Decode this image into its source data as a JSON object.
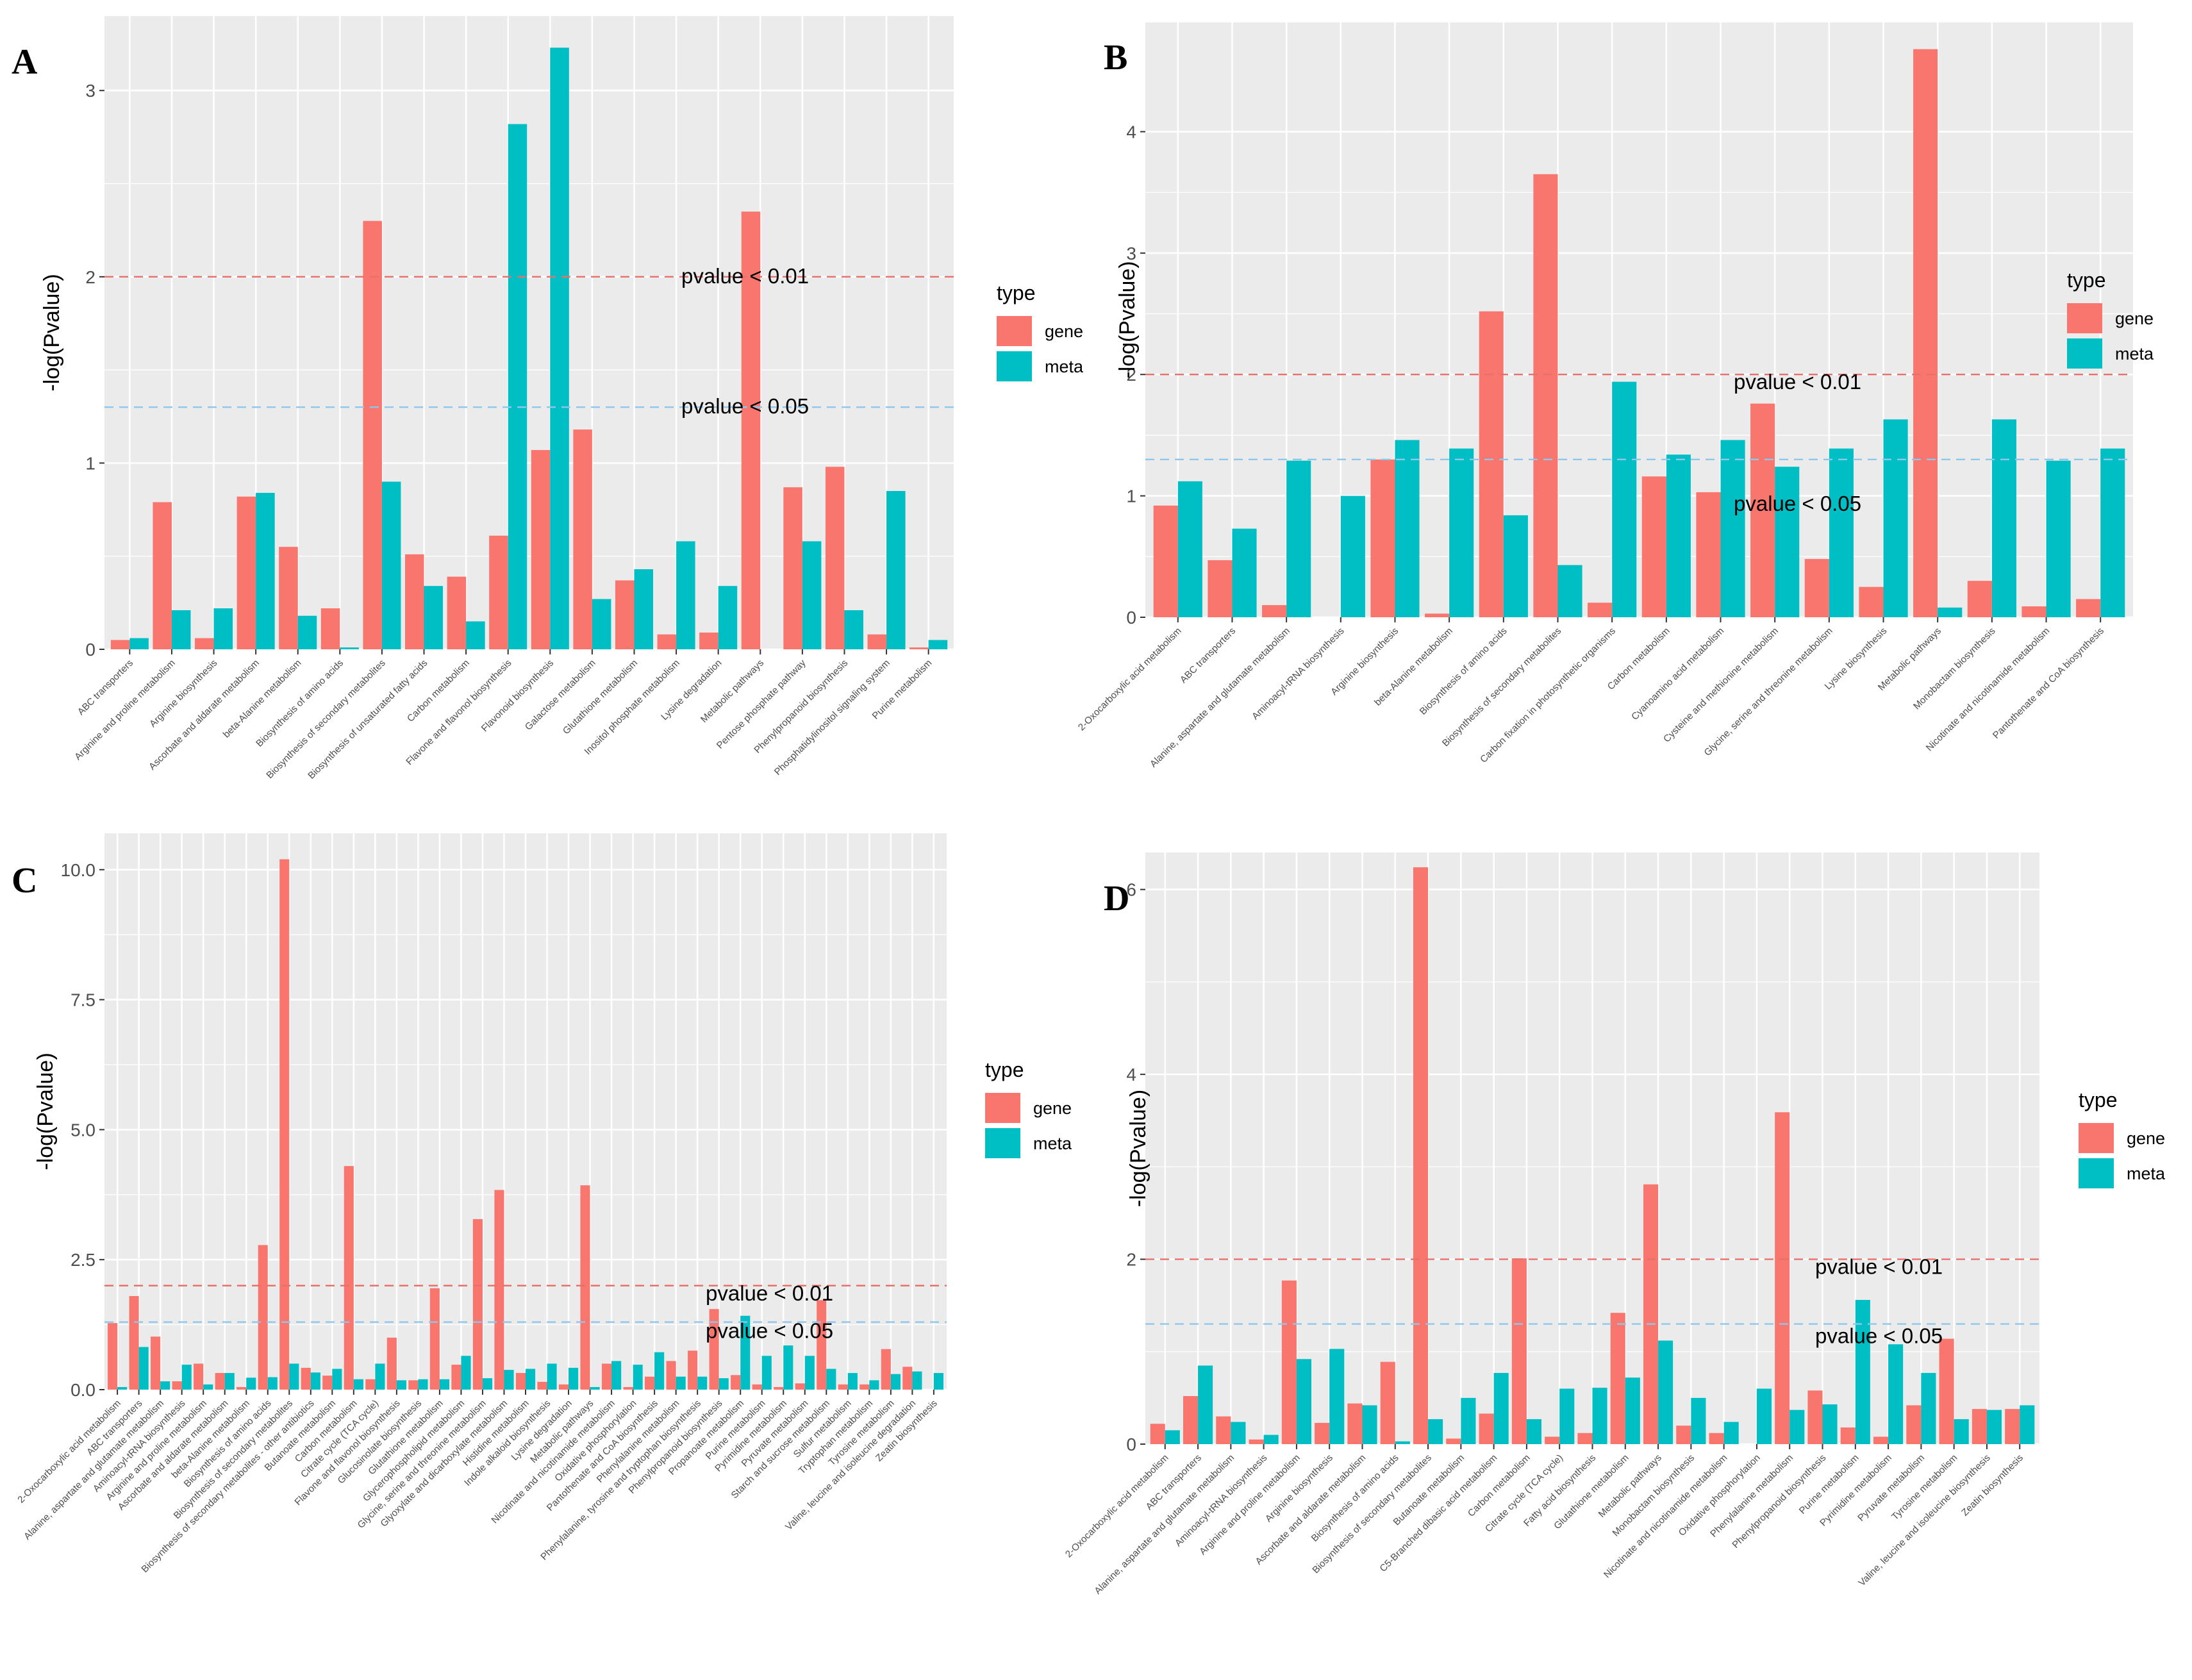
{
  "colors": {
    "gene": "#F8766D",
    "meta": "#00BFC4",
    "panel_bg": "#EBEBEB",
    "grid": "#FFFFFF",
    "ref_001": "#E8706A",
    "ref_005": "#8DC8EC"
  },
  "chart_data": [
    {
      "panel": "A",
      "type": "bar",
      "ylabel": "-log(Pvalue)",
      "ylim": [
        0,
        3.4
      ],
      "yticks": [
        0,
        1,
        2,
        3
      ],
      "ytick_labels": [
        "0",
        "1",
        "2",
        "3"
      ],
      "legend_title": "type",
      "legend_items": [
        "gene",
        "meta"
      ],
      "ref_lines": [
        {
          "value": 2,
          "label": "pvalue < 0.01",
          "color": "red"
        },
        {
          "value": 1.3,
          "label": "pvalue < 0.05",
          "color": "blue"
        }
      ],
      "categories": [
        "ABC transporters",
        "Arginine and proline metabolism",
        "Arginine biosynthesis",
        "Ascorbate and aldarate metabolism",
        "beta-Alanine metabolism",
        "Biosynthesis of amino acids",
        "Biosynthesis of secondary metabolites",
        "Biosynthesis of unsaturated fatty acids",
        "Carbon metabolism",
        "Flavone and flavonol biosynthesis",
        "Flavonoid biosynthesis",
        "Galactose metabolism",
        "Glutathione metabolism",
        "Inositol phosphate metabolism",
        "Lysine degradation",
        "Metabolic pathways",
        "Pentose phosphate pathway",
        "Phenylpropanoid biosynthesis",
        "Phosphatidylinositol signaling system",
        "Purine metabolism"
      ],
      "series": [
        {
          "name": "gene",
          "values": [
            0.05,
            0.79,
            0.06,
            0.82,
            0.55,
            0.22,
            2.3,
            0.51,
            0.39,
            0.61,
            1.07,
            1.18,
            0.37,
            0.08,
            0.09,
            2.35,
            0.87,
            0.98,
            0.08,
            0.01
          ]
        },
        {
          "name": "meta",
          "values": [
            0.06,
            0.21,
            0.22,
            0.84,
            0.18,
            0.01,
            0.9,
            0.34,
            0.15,
            2.82,
            3.23,
            0.27,
            0.43,
            0.58,
            0.34,
            0.0,
            0.58,
            0.21,
            0.85,
            0.05
          ]
        }
      ]
    },
    {
      "panel": "B",
      "type": "bar",
      "ylabel": "-log(Pvalue)",
      "ylim": [
        0,
        4.9
      ],
      "yticks": [
        0,
        1,
        2,
        3,
        4
      ],
      "ytick_labels": [
        "0",
        "1",
        "2",
        "3",
        "4"
      ],
      "legend_title": "type",
      "legend_items": [
        "gene",
        "meta"
      ],
      "ref_lines": [
        {
          "value": 2,
          "label": "pvalue < 0.01",
          "color": "red"
        },
        {
          "value": 1.3,
          "label": "pvalue < 0.05",
          "color": "blue"
        }
      ],
      "categories": [
        "2-Oxocarboxylic acid metabolism",
        "ABC transporters",
        "Alanine, aspartate and glutamate metabolism",
        "Aminoacyl-tRNA biosynthesis",
        "Arginine biosynthesis",
        "beta-Alanine metabolism",
        "Biosynthesis of amino acids",
        "Biosynthesis of secondary metabolites",
        "Carbon fixation in photosynthetic organisms",
        "Carbon metabolism",
        "Cyanoamino acid metabolism",
        "Cysteine and methionine metabolism",
        "Glycine, serine and threonine metabolism",
        "Lysine biosynthesis",
        "Metabolic pathways",
        "Monobactam biosynthesis",
        "Nicotinate and nicotinamide metabolism",
        "Pantothenate and CoA biosynthesis"
      ],
      "series": [
        {
          "name": "gene",
          "values": [
            0.92,
            0.47,
            0.1,
            0.0,
            1.3,
            0.03,
            2.52,
            3.65,
            0.12,
            1.16,
            1.03,
            1.76,
            0.48,
            0.25,
            4.68,
            0.3,
            0.09,
            0.15
          ]
        },
        {
          "name": "meta",
          "values": [
            1.12,
            0.73,
            1.29,
            1.0,
            1.46,
            1.39,
            0.84,
            0.43,
            1.94,
            1.34,
            1.46,
            1.24,
            1.39,
            1.63,
            0.08,
            1.63,
            1.29,
            1.39
          ]
        }
      ]
    },
    {
      "panel": "C",
      "type": "bar",
      "ylabel": "-log(Pvalue)",
      "ylim": [
        0,
        10.7
      ],
      "yticks": [
        0,
        2.5,
        5,
        7.5,
        10
      ],
      "ytick_labels": [
        "0.0",
        "2.5",
        "5.0",
        "7.5",
        "10.0"
      ],
      "legend_title": "type",
      "legend_items": [
        "gene",
        "meta"
      ],
      "ref_lines": [
        {
          "value": 2,
          "label": "pvalue < 0.01",
          "color": "red"
        },
        {
          "value": 1.3,
          "label": "pvalue < 0.05",
          "color": "blue"
        }
      ],
      "categories": [
        "2-Oxocarboxylic acid metabolism",
        "ABC transporters",
        "Alanine, aspartate and glutamate metabolism",
        "Aminoacyl-tRNA biosynthesis",
        "Arginine and proline metabolism",
        "Ascorbate and aldarate metabolism",
        "beta-Alanine metabolism",
        "Biosynthesis of amino acids",
        "Biosynthesis of secondary metabolites",
        "Biosynthesis of secondary metabolites - other antibiotics",
        "Butanoate metabolism",
        "Carbon metabolism",
        "Citrate cycle (TCA cycle)",
        "Flavone and flavonol biosynthesis",
        "Glucosinolate biosynthesis",
        "Glutathione metabolism",
        "Glycerophospholipid metabolism",
        "Glycine, serine and threonine metabolism",
        "Glyoxylate and dicarboxylate metabolism",
        "Histidine metabolism",
        "Indole alkaloid biosynthesis",
        "Lysine degradation",
        "Metabolic pathways",
        "Nicotinate and nicotinamide metabolism",
        "Oxidative phosphorylation",
        "Pantothenate and CoA biosynthesis",
        "Phenylalanine metabolism",
        "Phenylalanine, tyrosine and tryptophan biosynthesis",
        "Phenylpropanoid biosynthesis",
        "Propanoate metabolism",
        "Purine metabolism",
        "Pyrimidine metabolism",
        "Pyruvate metabolism",
        "Starch and sucrose metabolism",
        "Sulfur metabolism",
        "Tryptophan metabolism",
        "Tyrosine metabolism",
        "Valine, leucine and isoleucine degradation",
        "Zeatin biosynthesis"
      ],
      "series": [
        {
          "name": "gene",
          "values": [
            1.28,
            1.8,
            1.02,
            0.16,
            0.5,
            0.32,
            0.05,
            2.78,
            10.2,
            0.42,
            0.27,
            4.3,
            0.2,
            1.0,
            0.18,
            1.95,
            0.48,
            3.28,
            3.84,
            0.32,
            0.15,
            0.1,
            3.93,
            0.5,
            0.05,
            0.25,
            0.55,
            0.75,
            1.55,
            0.28,
            0.1,
            0.05,
            0.12,
            1.72,
            0.1,
            0.1,
            0.78,
            0.44,
            0.0
          ]
        },
        {
          "name": "meta",
          "values": [
            0.05,
            0.82,
            0.16,
            0.48,
            0.1,
            0.32,
            0.23,
            0.24,
            0.5,
            0.33,
            0.4,
            0.2,
            0.5,
            0.18,
            0.2,
            0.2,
            0.65,
            0.22,
            0.38,
            0.4,
            0.5,
            0.42,
            0.05,
            0.55,
            0.48,
            0.72,
            0.25,
            0.25,
            0.22,
            1.42,
            0.65,
            0.85,
            0.65,
            0.4,
            0.32,
            0.18,
            0.3,
            0.35,
            0.32
          ]
        }
      ]
    },
    {
      "panel": "D",
      "type": "bar",
      "ylabel": "-log(Pvalue)",
      "ylim": [
        0,
        6.4
      ],
      "yticks": [
        0,
        2,
        4,
        6
      ],
      "ytick_labels": [
        "0",
        "2",
        "4",
        "6"
      ],
      "legend_title": "type",
      "legend_items": [
        "gene",
        "meta"
      ],
      "ref_lines": [
        {
          "value": 2,
          "label": "pvalue < 0.01",
          "color": "red"
        },
        {
          "value": 1.3,
          "label": "pvalue < 0.05",
          "color": "blue"
        }
      ],
      "categories": [
        "2-Oxocarboxylic acid metabolism",
        "ABC transporters",
        "Alanine, aspartate and glutamate metabolism",
        "Aminoacyl-tRNA biosynthesis",
        "Arginine and proline metabolism",
        "Arginine biosynthesis",
        "Ascorbate and aldarate metabolism",
        "Biosynthesis of amino acids",
        "Biosynthesis of secondary metabolites",
        "Butanoate metabolism",
        "C5-Branched dibasic acid metabolism",
        "Carbon metabolism",
        "Citrate cycle (TCA cycle)",
        "Fatty acid biosynthesis",
        "Glutathione metabolism",
        "Metabolic pathways",
        "Monobactam biosynthesis",
        "Nicotinate and nicotinamide metabolism",
        "Oxidative phosphorylation",
        "Phenylalanine metabolism",
        "Phenylpropanoid biosynthesis",
        "Purine metabolism",
        "Pyrimidine metabolism",
        "Pyruvate metabolism",
        "Tyrosine metabolism",
        "Valine, leucine and isoleucine biosynthesis",
        "Zeatin biosynthesis"
      ],
      "series": [
        {
          "name": "gene",
          "values": [
            0.22,
            0.52,
            0.3,
            0.05,
            1.77,
            0.23,
            0.44,
            0.89,
            6.24,
            0.06,
            0.33,
            2.01,
            0.08,
            0.12,
            1.42,
            2.81,
            0.2,
            0.12,
            0.0,
            3.59,
            0.58,
            0.18,
            0.08,
            0.42,
            1.14,
            0.38,
            0.38
          ]
        },
        {
          "name": "meta",
          "values": [
            0.15,
            0.85,
            0.24,
            0.1,
            0.92,
            1.03,
            0.42,
            0.03,
            0.27,
            0.5,
            0.77,
            0.27,
            0.6,
            0.61,
            0.72,
            1.12,
            0.5,
            0.24,
            0.6,
            0.37,
            0.43,
            1.56,
            1.08,
            0.77,
            0.27,
            0.37,
            0.42
          ]
        }
      ]
    }
  ]
}
